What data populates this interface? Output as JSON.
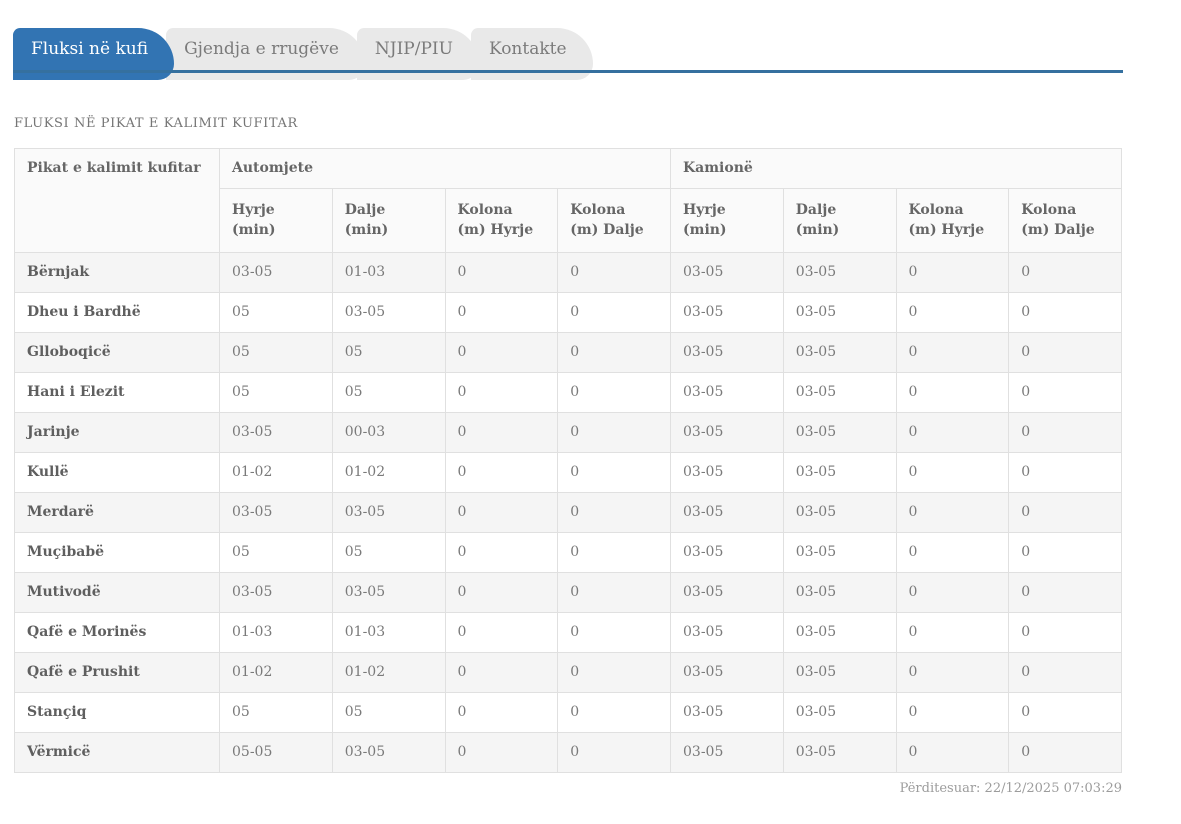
{
  "tabs": [
    {
      "label": "Fluksi në kufi",
      "active": true
    },
    {
      "label": "Gjendja e rrugëve",
      "active": false
    },
    {
      "label": "NJIP/PIU",
      "active": false
    },
    {
      "label": "Kontakte",
      "active": false
    }
  ],
  "page_title": "FLUKSI NË PIKAT E KALIMIT KUFITAR",
  "table": {
    "corner_header": "Pikat e kalimit kufitar",
    "groups": [
      {
        "label": "Automjete",
        "columns": [
          "Hyrje (min)",
          "Dalje (min)",
          "Kolona (m) Hyrje",
          "Kolona (m) Dalje"
        ]
      },
      {
        "label": "Kamionë",
        "columns": [
          "Hyrje (min)",
          "Dalje (min)",
          "Kolona (m) Hyrje",
          "Kolona (m) Dalje"
        ]
      }
    ],
    "rows": [
      {
        "name": "Bërnjak",
        "values": [
          "03-05",
          "01-03",
          "0",
          "0",
          "03-05",
          "03-05",
          "0",
          "0"
        ]
      },
      {
        "name": "Dheu i Bardhë",
        "values": [
          "05",
          "03-05",
          "0",
          "0",
          "03-05",
          "03-05",
          "0",
          "0"
        ]
      },
      {
        "name": "Glloboqicë",
        "values": [
          "05",
          "05",
          "0",
          "0",
          "03-05",
          "03-05",
          "0",
          "0"
        ]
      },
      {
        "name": "Hani i Elezit",
        "values": [
          "05",
          "05",
          "0",
          "0",
          "03-05",
          "03-05",
          "0",
          "0"
        ]
      },
      {
        "name": "Jarinje",
        "values": [
          "03-05",
          "00-03",
          "0",
          "0",
          "03-05",
          "03-05",
          "0",
          "0"
        ]
      },
      {
        "name": "Kullë",
        "values": [
          "01-02",
          "01-02",
          "0",
          "0",
          "03-05",
          "03-05",
          "0",
          "0"
        ]
      },
      {
        "name": "Merdarë",
        "values": [
          "03-05",
          "03-05",
          "0",
          "0",
          "03-05",
          "03-05",
          "0",
          "0"
        ]
      },
      {
        "name": "Muçibabë",
        "values": [
          "05",
          "05",
          "0",
          "0",
          "03-05",
          "03-05",
          "0",
          "0"
        ]
      },
      {
        "name": "Mutivodë",
        "values": [
          "03-05",
          "03-05",
          "0",
          "0",
          "03-05",
          "03-05",
          "0",
          "0"
        ]
      },
      {
        "name": "Qafë e Morinës",
        "values": [
          "01-03",
          "01-03",
          "0",
          "0",
          "03-05",
          "03-05",
          "0",
          "0"
        ]
      },
      {
        "name": "Qafë e Prushit",
        "values": [
          "01-02",
          "01-02",
          "0",
          "0",
          "03-05",
          "03-05",
          "0",
          "0"
        ]
      },
      {
        "name": "Stançiq",
        "values": [
          "05",
          "05",
          "0",
          "0",
          "03-05",
          "03-05",
          "0",
          "0"
        ]
      },
      {
        "name": "Vërmicë",
        "values": [
          "05-05",
          "03-05",
          "0",
          "0",
          "03-05",
          "03-05",
          "0",
          "0"
        ]
      }
    ]
  },
  "footer": {
    "updated_label": "Përditesuar: 22/12/2025 07:03:29"
  },
  "colors": {
    "accent_blue": "#3274b3",
    "underline_blue": "#35709f",
    "tab_gray": "#e9e9e9",
    "row_stripe": "#f5f5f5",
    "table_border": "#e0e0e0"
  }
}
